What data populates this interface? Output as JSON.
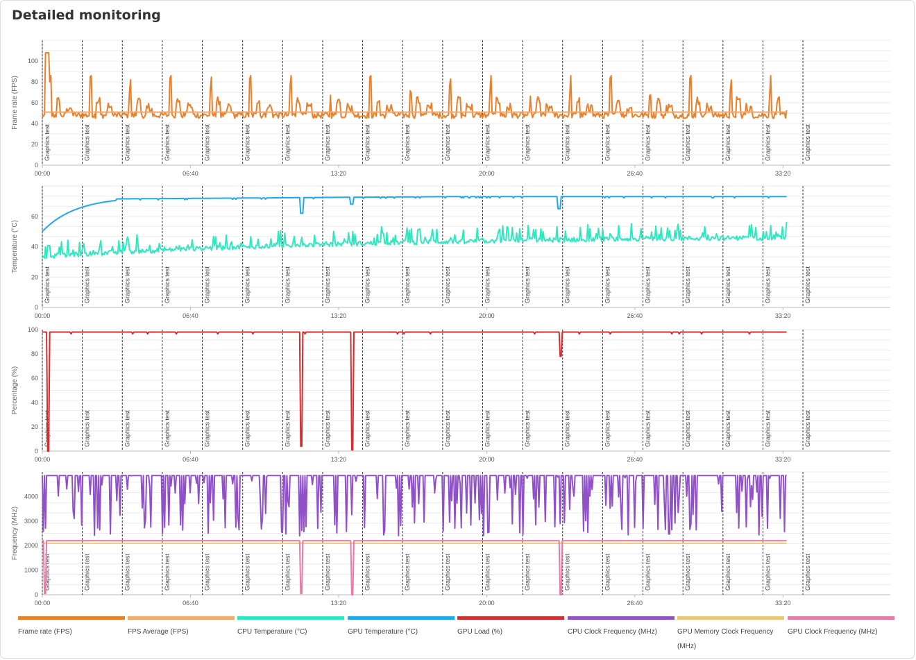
{
  "page": {
    "title": "Detailed monitoring"
  },
  "colors": {
    "fps": "#e8802a",
    "fps_avg": "#f4a86a",
    "cpu_temp": "#2ee8c0",
    "gpu_temp": "#1ea8f0",
    "gpu_load": "#d03030",
    "cpu_clock": "#9050c8",
    "gpu_mem_clock": "#e8c878",
    "gpu_clock": "#e87aa8",
    "grid": "#ebebeb",
    "marker": "#333333"
  },
  "chart_data": {
    "type": "line",
    "x_unit": "seconds",
    "xlim": [
      0,
      2290
    ],
    "x_ticks": [
      "00:00",
      "06:40",
      "13:20",
      "20:00",
      "26:40",
      "33:20"
    ],
    "x_tick_values": [
      0,
      400,
      800,
      1200,
      1600,
      2000
    ],
    "event_markers": {
      "label": "Graphics test",
      "x": [
        0,
        108,
        216,
        324,
        432,
        541,
        649,
        757,
        865,
        973,
        1081,
        1189,
        1297,
        1405,
        1513,
        1622,
        1730,
        1838,
        1946,
        2054
      ]
    },
    "panels": [
      {
        "ylabel": "Frame rate (FPS)",
        "ylim": [
          0,
          120
        ],
        "yticks": [
          0,
          20,
          40,
          60,
          80,
          100
        ],
        "series": [
          {
            "name": "Frame rate (FPS)",
            "color_key": "fps",
            "pattern": "fps",
            "base": 48,
            "peak": 86,
            "first_peak": 108
          },
          {
            "name": "FPS Average (FPS)",
            "color_key": "fps_avg",
            "pattern": "flat",
            "value": 51
          }
        ]
      },
      {
        "ylabel": "Temperature (°C)",
        "ylim": [
          0,
          80
        ],
        "yticks": [
          0,
          20,
          40,
          60
        ],
        "series": [
          {
            "name": "GPU Temperature (°C)",
            "color_key": "gpu_temp",
            "pattern": "warmup",
            "start": 50,
            "end": 73,
            "dips": [
              [
                700,
                62
              ],
              [
                835,
                68
              ],
              [
                1395,
                65
              ]
            ]
          },
          {
            "name": "CPU Temperature (°C)",
            "color_key": "cpu_temp",
            "pattern": "noisy_rise",
            "start": 32,
            "end": 46,
            "spike": 10
          }
        ]
      },
      {
        "ylabel": "Percentage (%)",
        "ylim": [
          0,
          100
        ],
        "yticks": [
          0,
          20,
          40,
          60,
          80,
          100
        ],
        "series": [
          {
            "name": "GPU Load (%)",
            "color_key": "gpu_load",
            "pattern": "flat_dips",
            "value": 98,
            "dips": [
              [
                15,
                0
              ],
              [
                700,
                4
              ],
              [
                837,
                1
              ],
              [
                1400,
                78
              ]
            ]
          }
        ]
      },
      {
        "ylabel": "Frequency (MHz)",
        "ylim": [
          0,
          5000
        ],
        "yticks": [
          0,
          1000,
          2000,
          3000,
          4000
        ],
        "series": [
          {
            "name": "CPU Clock Frequency (MHz)",
            "color_key": "cpu_clock",
            "pattern": "clock_dips",
            "value": 4850,
            "low": 2400
          },
          {
            "name": "GPU Memory Clock Frequency (MHz)",
            "color_key": "gpu_mem_clock",
            "pattern": "flat",
            "value": 2100
          },
          {
            "name": "GPU Clock Frequency (MHz)",
            "color_key": "gpu_clock",
            "pattern": "flat_dips",
            "value": 2200,
            "dips": [
              [
                8,
                50
              ],
              [
                700,
                50
              ],
              [
                837,
                0
              ],
              [
                1400,
                0
              ]
            ]
          }
        ]
      }
    ]
  },
  "legend": [
    {
      "label": "Frame rate (FPS)",
      "color_key": "fps"
    },
    {
      "label": "FPS Average (FPS)",
      "color_key": "fps_avg"
    },
    {
      "label": "CPU Temperature (°C)",
      "color_key": "cpu_temp"
    },
    {
      "label": "GPU Temperature (°C)",
      "color_key": "gpu_temp"
    },
    {
      "label": "GPU Load (%)",
      "color_key": "gpu_load"
    },
    {
      "label": "CPU Clock Frequency (MHz)",
      "color_key": "cpu_clock"
    },
    {
      "label": "GPU Memory Clock Frequency (MHz)",
      "color_key": "gpu_mem_clock"
    },
    {
      "label": "GPU Clock Frequency (MHz)",
      "color_key": "gpu_clock"
    }
  ]
}
